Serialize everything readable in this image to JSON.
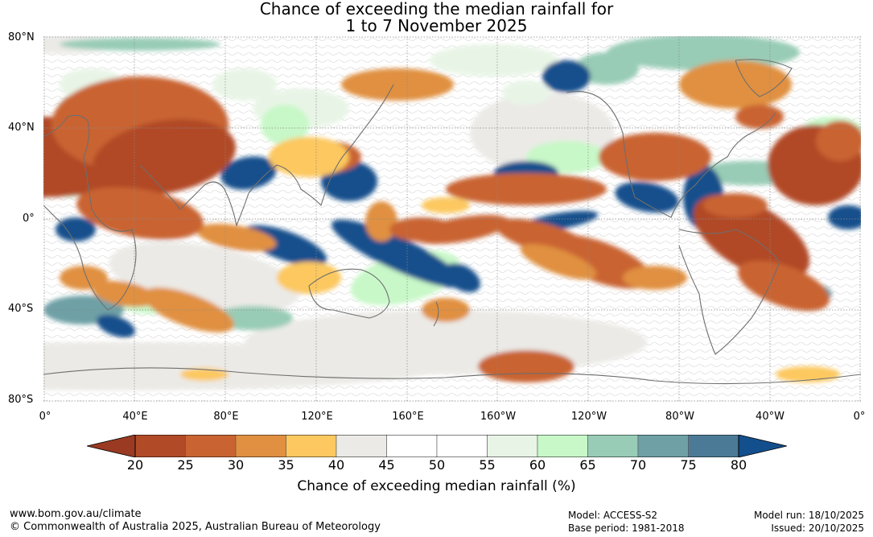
{
  "title": [
    "Chance of exceeding the median rainfall for",
    "1 to 7 November 2025"
  ],
  "lat_labels": [
    "80°N",
    "40°N",
    "0°",
    "40°S",
    "80°S"
  ],
  "lon_labels": [
    "0°",
    "40°E",
    "80°E",
    "120°E",
    "160°E",
    "160°W",
    "120°W",
    "80°W",
    "40°W",
    "0°"
  ],
  "legend": {
    "label": "Chance of exceeding median rainfall (%)",
    "ticks": [
      "20",
      "25",
      "30",
      "35",
      "40",
      "45",
      "50",
      "55",
      "60",
      "65",
      "70",
      "75",
      "80"
    ],
    "colors": [
      "#9b3a22",
      "#b14a26",
      "#c96432",
      "#e09040",
      "#fcc85f",
      "#ebeae6",
      "#ffffff",
      "#ffffff",
      "#e8f5e6",
      "#c8f8c8",
      "#98ccb6",
      "#6ea0a6",
      "#4b7a96",
      "#134f8c"
    ]
  },
  "footer": {
    "url": "www.bom.gov.au/climate",
    "copyright": "© Commonwealth of Australia 2025, Australian Bureau of Meteorology",
    "model": "Model: ACCESS-S2",
    "base_period": "Base period: 1981-2018",
    "model_run": "Model run: 18/10/2025",
    "issued": "Issued: 20/10/2025"
  }
}
